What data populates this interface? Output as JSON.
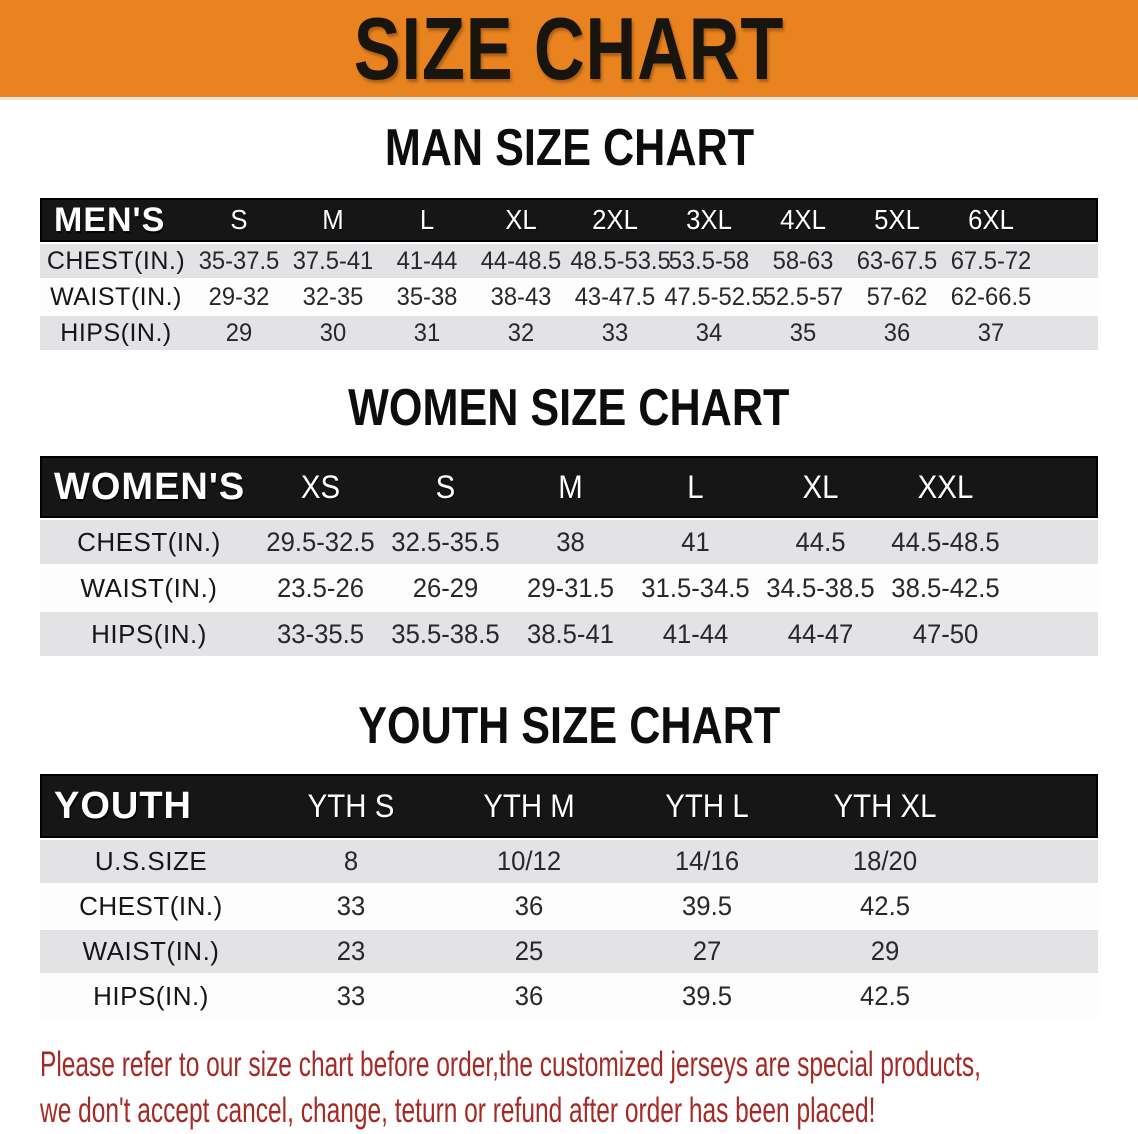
{
  "banner": {
    "title": "SIZE CHART"
  },
  "colors": {
    "banner_bg": "#E8831F",
    "table_header_bg": "#161616",
    "row_stripe": "#E3E3E6",
    "disclaimer_text": "#A52A26"
  },
  "sections": [
    {
      "title": "MAN SIZE CHART",
      "group_label": "MEN'S",
      "columns": [
        "S",
        "M",
        "L",
        "XL",
        "2XL",
        "3XL",
        "4XL",
        "5XL",
        "6XL"
      ],
      "rows": [
        {
          "label": "CHEST(IN.)",
          "values": [
            "35-37.5",
            "37.5-41",
            "41-44",
            "44-48.5",
            "48.5-53.5",
            "53.5-58",
            "58-63",
            "63-67.5",
            "67.5-72"
          ]
        },
        {
          "label": "WAIST(IN.)",
          "values": [
            "29-32",
            "32-35",
            "35-38",
            "38-43",
            "43-47.5",
            "47.5-52.5",
            "52.5-57",
            "57-62",
            "62-66.5"
          ]
        },
        {
          "label": "HIPS(IN.)",
          "values": [
            "29",
            "30",
            "31",
            "32",
            "33",
            "34",
            "35",
            "36",
            "37"
          ]
        }
      ]
    },
    {
      "title": "WOMEN SIZE CHART",
      "group_label": "WOMEN'S",
      "columns": [
        "XS",
        "S",
        "M",
        "L",
        "XL",
        "XXL"
      ],
      "rows": [
        {
          "label": "CHEST(IN.)",
          "values": [
            "29.5-32.5",
            "32.5-35.5",
            "38",
            "41",
            "44.5",
            "44.5-48.5"
          ]
        },
        {
          "label": "WAIST(IN.)",
          "values": [
            "23.5-26",
            "26-29",
            "29-31.5",
            "31.5-34.5",
            "34.5-38.5",
            "38.5-42.5"
          ]
        },
        {
          "label": "HIPS(IN.)",
          "values": [
            "33-35.5",
            "35.5-38.5",
            "38.5-41",
            "41-44",
            "44-47",
            "47-50"
          ]
        }
      ]
    },
    {
      "title": "YOUTH SIZE CHART",
      "group_label": "YOUTH",
      "columns": [
        "YTH S",
        "YTH M",
        "YTH L",
        "YTH XL"
      ],
      "rows": [
        {
          "label": "U.S.SIZE",
          "values": [
            "8",
            "10/12",
            "14/16",
            "18/20"
          ]
        },
        {
          "label": "CHEST(IN.)",
          "values": [
            "33",
            "36",
            "39.5",
            "42.5"
          ]
        },
        {
          "label": "WAIST(IN.)",
          "values": [
            "23",
            "25",
            "27",
            "29"
          ]
        },
        {
          "label": "HIPS(IN.)",
          "values": [
            "33",
            "36",
            "39.5",
            "42.5"
          ]
        }
      ]
    }
  ],
  "disclaimer": {
    "line1": "Please refer to our size chart before order,the customized jerseys are special products,",
    "line2": "we don't accept cancel, change, teturn or refund after order has been placed!"
  }
}
